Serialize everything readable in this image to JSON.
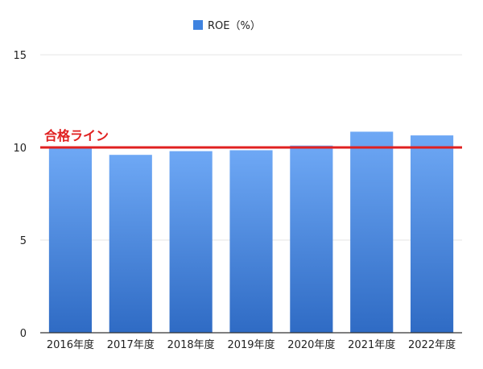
{
  "chart_data": {
    "type": "bar",
    "categories": [
      "2016年度",
      "2017年度",
      "2018年度",
      "2019年度",
      "2020年度",
      "2021年度",
      "2022年度"
    ],
    "series": [
      {
        "name": "ROE（%）",
        "values": [
          10.0,
          9.6,
          9.8,
          9.85,
          10.1,
          10.85,
          10.65
        ]
      }
    ],
    "ylim": [
      0,
      15
    ],
    "yticks": [
      0,
      5,
      10,
      15
    ],
    "grid": true,
    "legend_position": "top-center",
    "reference_line": {
      "value": 10,
      "label": "合格ライン",
      "color": "#e02020"
    },
    "colors": {
      "bar_top": "#6ea8f5",
      "bar_bottom": "#2f6bc4",
      "legend_swatch": "#3f83e0",
      "grid": "#e6e6e6",
      "axis": "#333333"
    }
  }
}
